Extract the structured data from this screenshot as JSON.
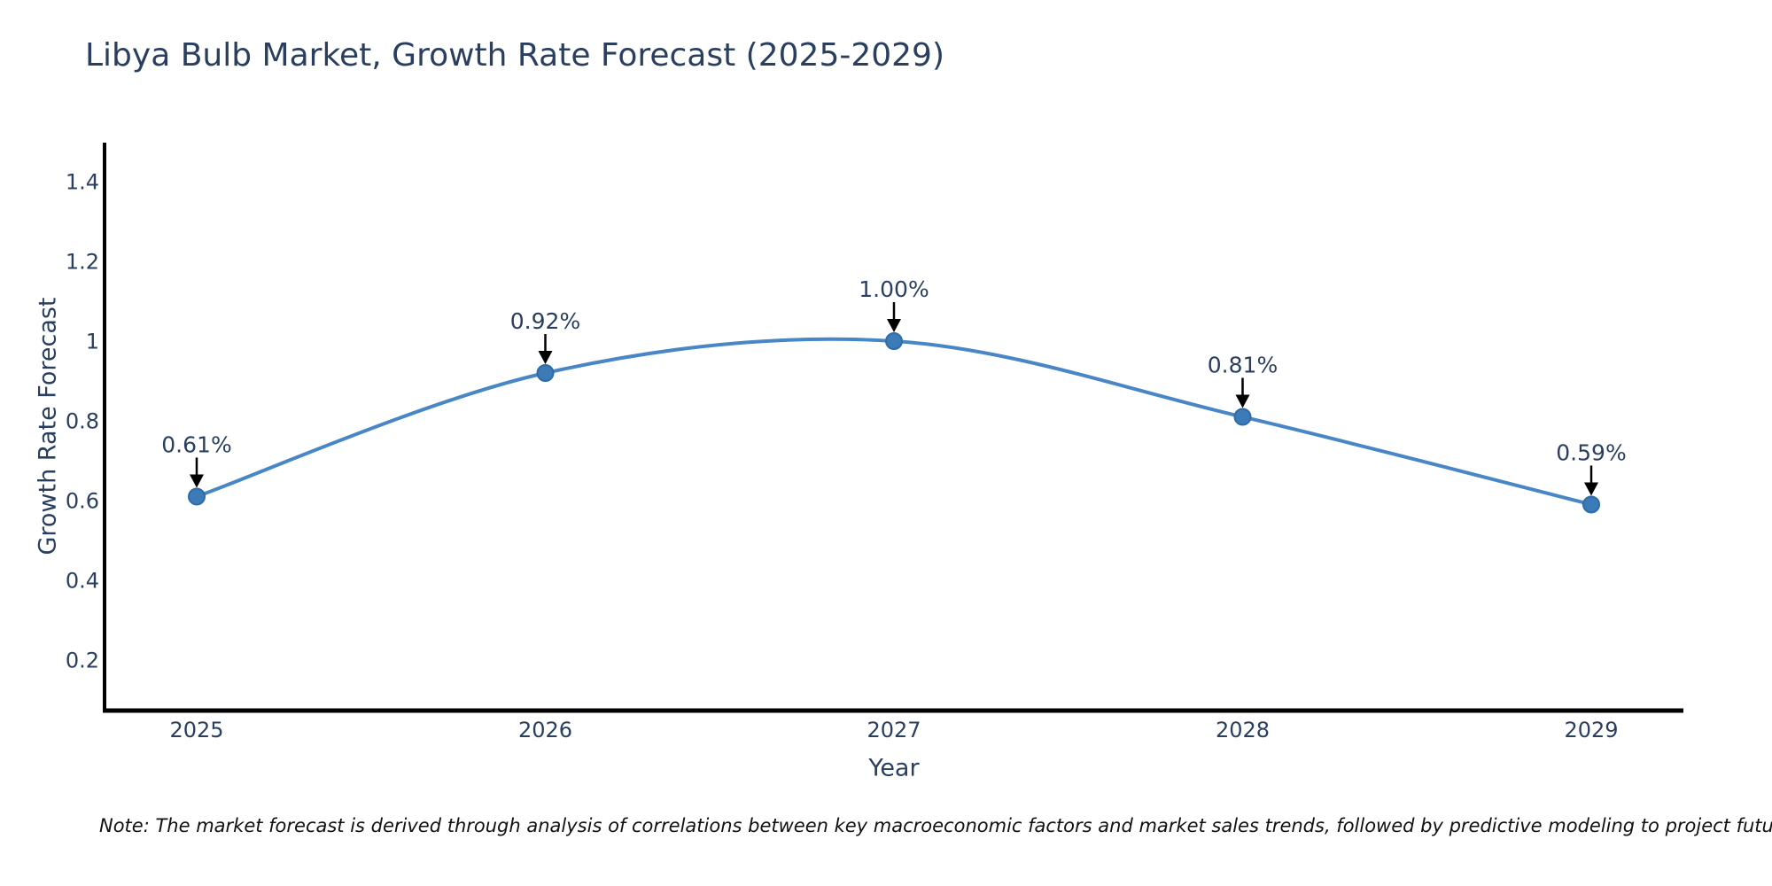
{
  "title": "Libya Bulb Market, Growth Rate Forecast (2025-2029)",
  "note": "Note: The market forecast is derived through analysis of correlations between key macroeconomic factors and market sales trends, followed by predictive modeling to project future sales",
  "chart_data": {
    "type": "line",
    "title": "Libya Bulb Market, Growth Rate Forecast (2025-2029)",
    "xlabel": "Year",
    "ylabel": "Growth Rate Forecast",
    "categories": [
      "2025",
      "2026",
      "2027",
      "2028",
      "2029"
    ],
    "series": [
      {
        "name": "Growth Rate Forecast",
        "values": [
          0.61,
          0.92,
          1.0,
          0.81,
          0.59
        ],
        "point_labels": [
          "0.61%",
          "0.92%",
          "1.00%",
          "0.81%",
          "0.59%"
        ]
      }
    ],
    "line_shape": "spline",
    "markers": true,
    "annotations_with_arrows": true,
    "yticks": [
      0.2,
      0.4,
      0.6,
      0.8,
      1,
      1.2,
      1.4
    ],
    "ytick_labels": [
      "0.2",
      "0.4",
      "0.6",
      "0.8",
      "1",
      "1.2",
      "1.4"
    ],
    "ylim": [
      0.073,
      1.498
    ],
    "grid": false,
    "legend_position": "none",
    "colors": {
      "line": "#4886c5",
      "marker_fill": "#3d7ab8",
      "marker_edge": "#2e6ca8",
      "arrow": "#000000",
      "axis_line": "#000000",
      "text": "#2a3f5f",
      "note_text": "#111111",
      "background": "#ffffff"
    }
  }
}
